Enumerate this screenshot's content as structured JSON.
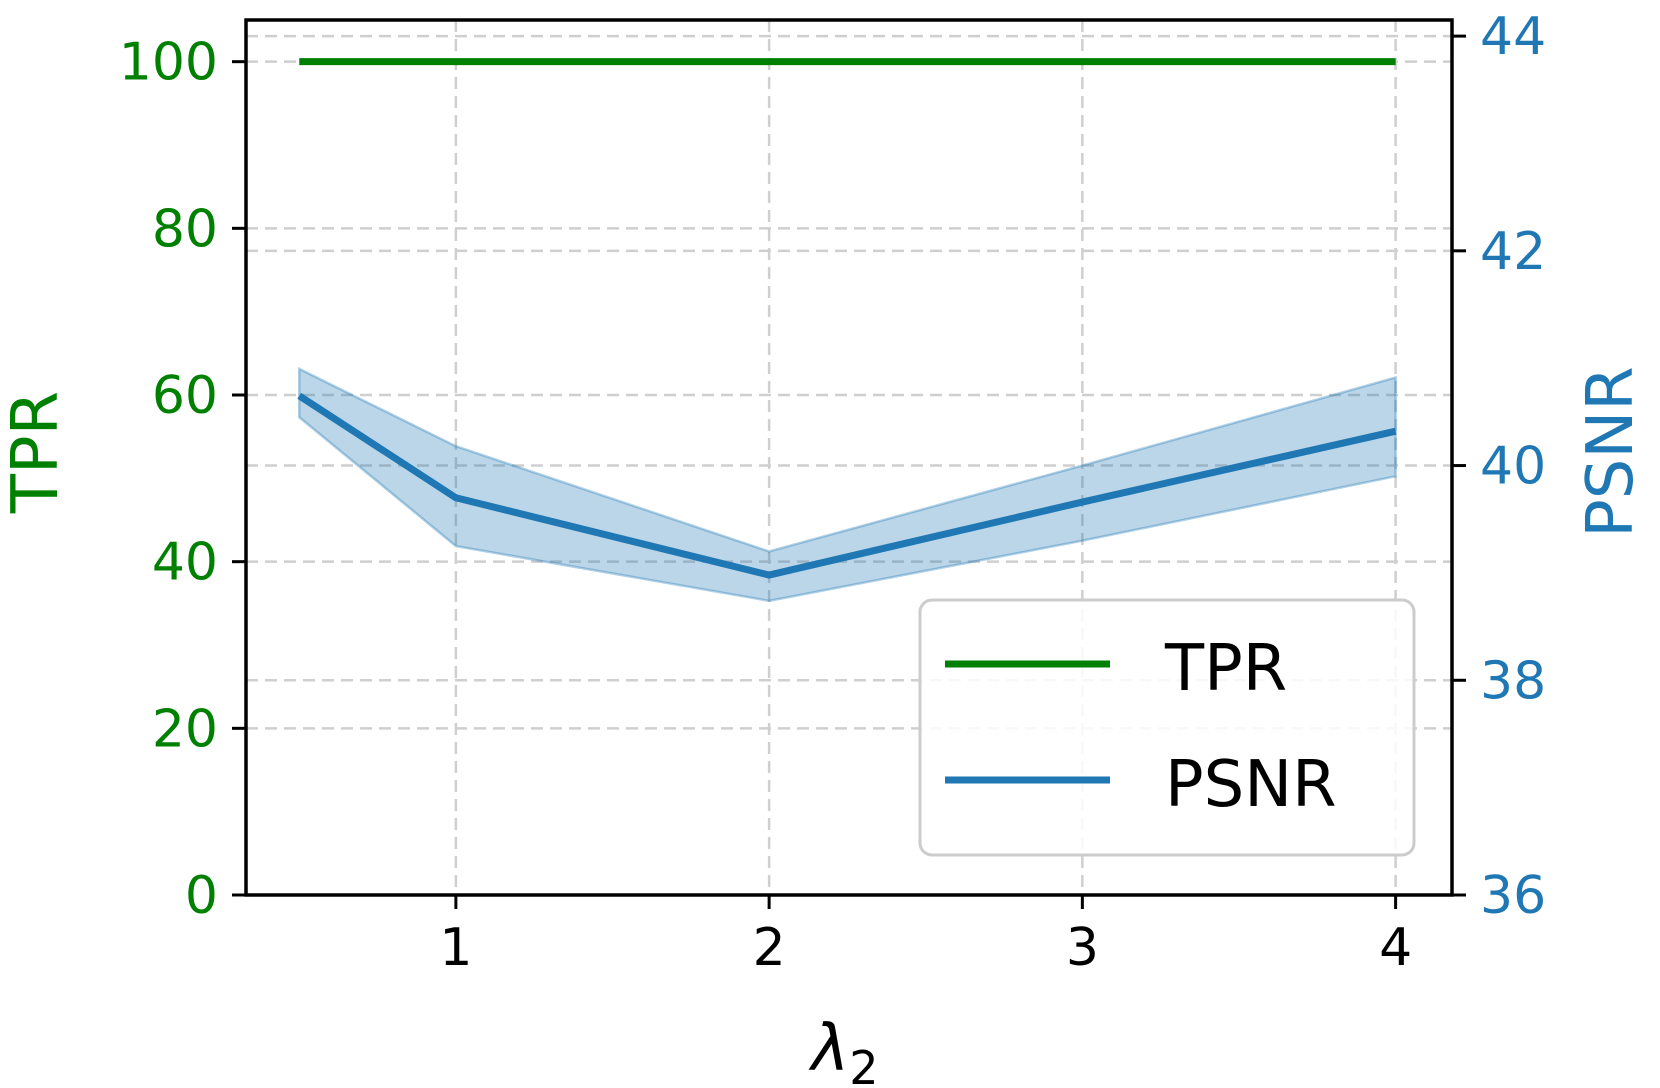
{
  "chart_data": {
    "type": "line",
    "xlabel": "λ",
    "xlabel_sub": "2",
    "x_ticks": [
      "1",
      "2",
      "3",
      "4"
    ],
    "x_tick_values": [
      1,
      2,
      3,
      4
    ],
    "xlim": [
      0.33,
      4.18
    ],
    "y_left": {
      "label": "TPR",
      "color": "#008000",
      "ticks": [
        "0",
        "20",
        "40",
        "60",
        "80",
        "100"
      ],
      "tick_values": [
        0,
        20,
        40,
        60,
        80,
        100
      ],
      "ylim": [
        0,
        105
      ]
    },
    "y_right": {
      "label": "PSNR",
      "color": "#1f77b4",
      "ticks": [
        "36",
        "38",
        "40",
        "42",
        "44"
      ],
      "tick_values": [
        36,
        38,
        40,
        42,
        44
      ],
      "ylim": [
        36,
        44.15
      ]
    },
    "grid": true,
    "legend_position": "lower-right",
    "series": [
      {
        "name": "TPR",
        "axis": "left",
        "color": "#008000",
        "x": [
          0.5,
          1,
          2,
          3,
          4
        ],
        "values": [
          100,
          100,
          100,
          100,
          100
        ]
      },
      {
        "name": "PSNR",
        "axis": "right",
        "color": "#1f77b4",
        "x": [
          0.5,
          1,
          2,
          3,
          4
        ],
        "values": [
          40.65,
          39.7,
          38.98,
          39.66,
          40.32
        ],
        "lower": [
          40.45,
          39.25,
          38.74,
          39.3,
          39.9
        ],
        "upper": [
          40.9,
          40.18,
          39.2,
          40.0,
          40.82
        ]
      }
    ]
  }
}
